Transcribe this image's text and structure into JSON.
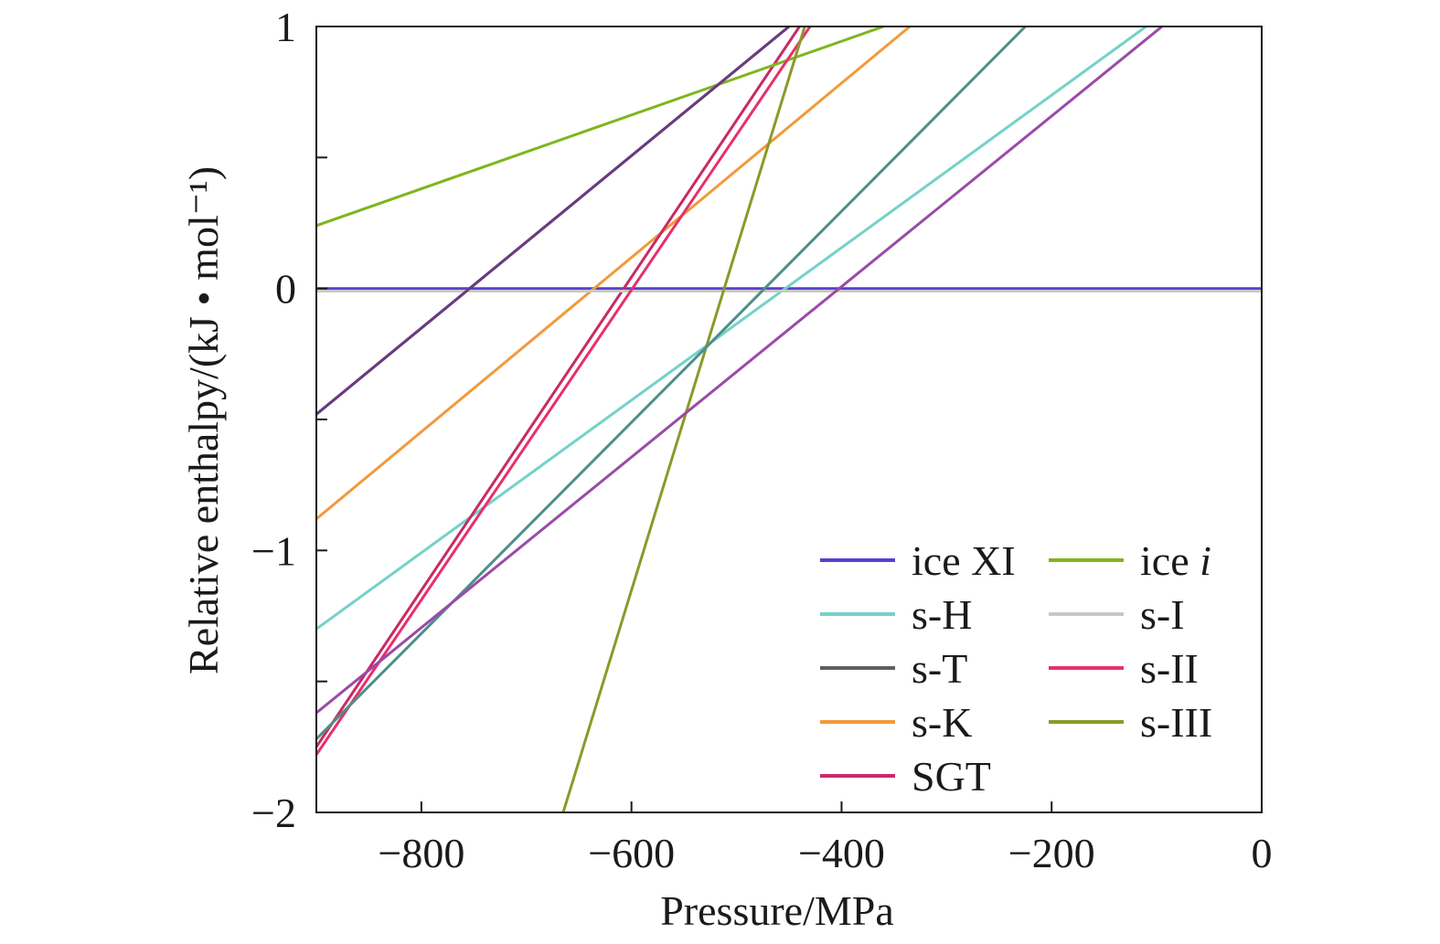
{
  "chart_data": {
    "type": "line",
    "title": "",
    "xlabel": "Pressure/MPa",
    "ylabel": "Relative enthalpy/(kJ • mol⁻¹)",
    "xlim": [
      -900,
      0
    ],
    "ylim": [
      -2,
      1
    ],
    "xticks": [
      -800,
      -600,
      -400,
      -200,
      0
    ],
    "xtick_labels": [
      "−800",
      "−600",
      "−400",
      "−200",
      "0"
    ],
    "yticks": [
      -2,
      -1,
      0,
      1
    ],
    "ytick_labels": [
      "−2",
      "−1",
      "0",
      "1"
    ],
    "legend_position": "bottom-right",
    "series": [
      {
        "name": "ice XI",
        "label_prefix": "ice XI",
        "label_italic": "",
        "color": "#5a3fd0",
        "x": [
          -900,
          0
        ],
        "y": [
          0,
          0
        ]
      },
      {
        "name": "s-H",
        "label_prefix": "s-H",
        "label_italic": "",
        "color": "#74d2c8",
        "x": [
          -900,
          -110
        ],
        "y": [
          -1.3,
          1.0
        ]
      },
      {
        "name": "s-T",
        "label_prefix": "s-T",
        "label_italic": "",
        "color": "#5f5f5f",
        "x": [
          -900,
          -450
        ],
        "y": [
          -0.48,
          1.0
        ]
      },
      {
        "name": "s-K",
        "label_prefix": "s-K",
        "label_italic": "",
        "color": "#f29a3a",
        "x": [
          -900,
          -335
        ],
        "y": [
          -0.88,
          1.0
        ]
      },
      {
        "name": "SGT",
        "label_prefix": "SGT",
        "label_italic": "",
        "color": "#c82a68",
        "x": [
          -900,
          -440
        ],
        "y": [
          -1.75,
          1.0
        ]
      },
      {
        "name": "ice i",
        "label_prefix": "ice ",
        "label_italic": "i",
        "color": "#7fb51e",
        "x": [
          -900,
          -360
        ],
        "y": [
          0.24,
          1.0
        ]
      },
      {
        "name": "s-I",
        "label_prefix": "s-I",
        "label_italic": "",
        "color": "#c8c8c8",
        "x": [
          -900,
          0
        ],
        "y": [
          -0.01,
          -0.01
        ]
      },
      {
        "name": "s-II",
        "label_prefix": "s-II",
        "label_italic": "",
        "color": "#e8306a",
        "x": [
          -900,
          -430
        ],
        "y": [
          -1.78,
          1.0
        ]
      },
      {
        "name": "s-III",
        "label_prefix": "s-III",
        "label_italic": "",
        "color": "#8a9a2a",
        "x": [
          -665,
          -435
        ],
        "y": [
          -2.0,
          1.0
        ]
      },
      {
        "name": "s-T (teal)",
        "legend": false,
        "color": "#4e8f8a",
        "x": [
          -900,
          -225
        ],
        "y": [
          -1.72,
          1.0
        ]
      },
      {
        "name": "s-H (purple)",
        "legend": false,
        "color": "#9a4aa8",
        "x": [
          -900,
          -95
        ],
        "y": [
          -1.62,
          1.0
        ]
      },
      {
        "name": "s-K (dark purple)",
        "legend": false,
        "color": "#6a3a80",
        "x": [
          -900,
          -450
        ],
        "y": [
          -0.48,
          1.0
        ]
      }
    ]
  }
}
